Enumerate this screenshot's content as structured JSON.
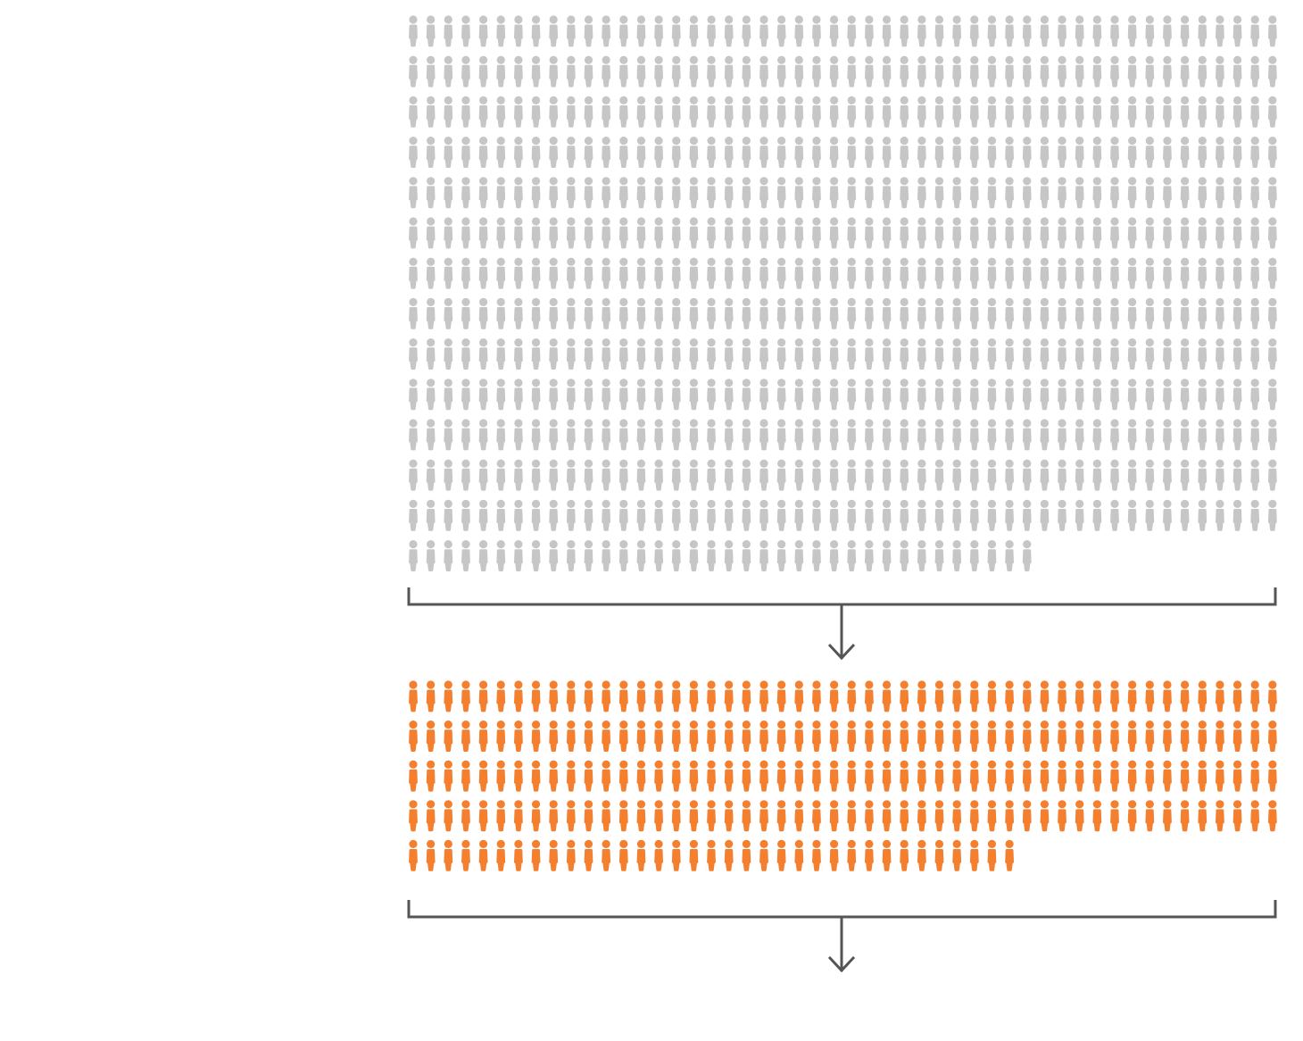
{
  "chart_data": {
    "type": "pictogram",
    "icon": "person-icon",
    "icons_per_row": 50,
    "groups": [
      {
        "id": "total",
        "count": 686,
        "color": "#c6c6c6"
      },
      {
        "id": "subset",
        "count": 235,
        "color": "#f47f2f"
      }
    ],
    "connector_color": "#555555"
  }
}
